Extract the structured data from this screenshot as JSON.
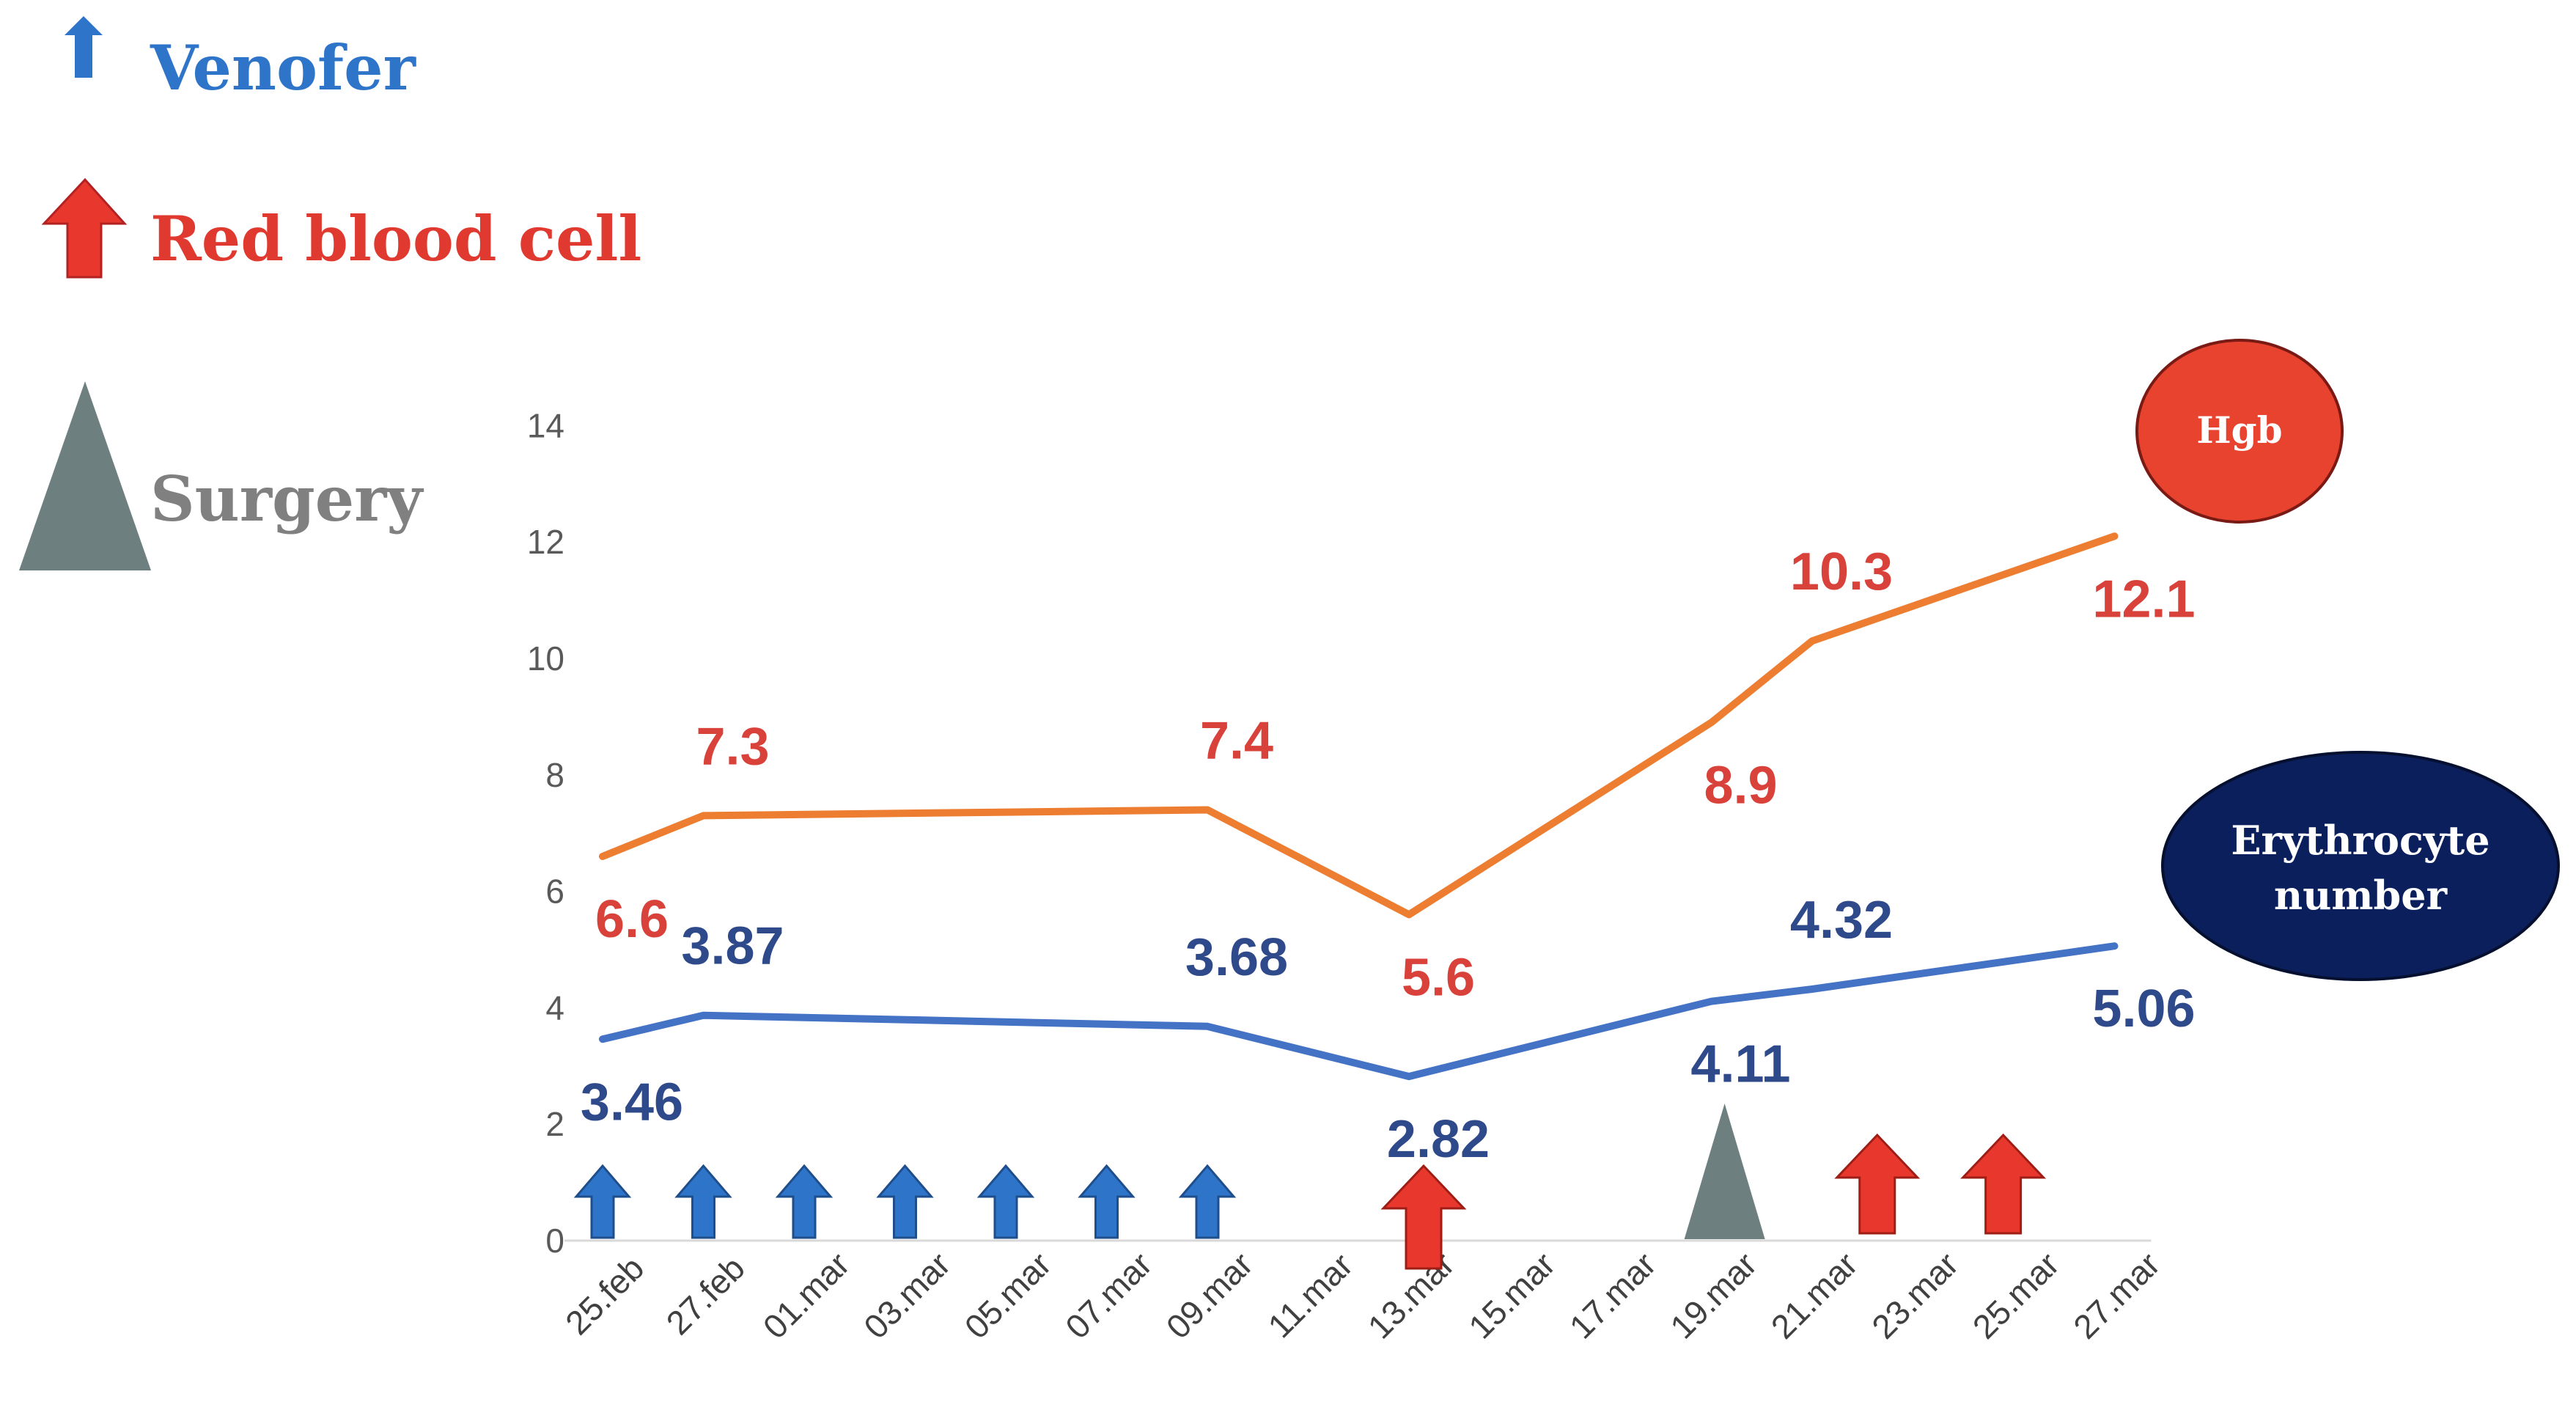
{
  "legend": {
    "venofer": "Venofer",
    "rbc": "Red blood cell",
    "surgery": "Surgery"
  },
  "badges": {
    "hgb": "Hgb",
    "erythrocyte_line1": "Erythrocyte",
    "erythrocyte_line2": "number"
  },
  "colors": {
    "hgb_line": "#ED7D31",
    "ery_line": "#4472C4",
    "hgb_label": "#D9423A",
    "ery_label": "#2F4A8A",
    "venofer": "#2E75C9",
    "rbc": "#E8382E",
    "surgery": "#6E7F80",
    "hgb_badge": "#E8432F",
    "ery_badge": "#0B1F5C"
  },
  "chart_data": {
    "type": "line",
    "categories": [
      "25.feb",
      "27.feb",
      "01.mar",
      "03.mar",
      "05.mar",
      "07.mar",
      "09.mar",
      "11.mar",
      "13.mar",
      "15.mar",
      "17.mar",
      "19.mar",
      "21.mar",
      "23.mar",
      "25.mar",
      "27.mar"
    ],
    "ylim": [
      0,
      14
    ],
    "yticks": [
      0,
      2,
      4,
      6,
      8,
      10,
      12,
      14
    ],
    "series": [
      {
        "name": "Hgb",
        "points": [
          {
            "x": 0,
            "y": 6.6,
            "label": "6.6",
            "label_pos": "below"
          },
          {
            "x": 1,
            "y": 7.3,
            "label": "7.3",
            "label_pos": "above"
          },
          {
            "x": 6,
            "y": 7.4,
            "label": "7.4",
            "label_pos": "above"
          },
          {
            "x": 8,
            "y": 5.6,
            "label": "5.6",
            "label_pos": "below"
          },
          {
            "x": 11,
            "y": 8.9,
            "label": "8.9",
            "label_pos": "below"
          },
          {
            "x": 12,
            "y": 10.3,
            "label": "10.3",
            "label_pos": "above"
          },
          {
            "x": 15,
            "y": 12.1,
            "label": "12.1",
            "label_pos": "below"
          }
        ]
      },
      {
        "name": "Erythrocyte number",
        "points": [
          {
            "x": 0,
            "y": 3.46,
            "label": "3.46",
            "label_pos": "below"
          },
          {
            "x": 1,
            "y": 3.87,
            "label": "3.87",
            "label_pos": "above"
          },
          {
            "x": 6,
            "y": 3.68,
            "label": "3.68",
            "label_pos": "above"
          },
          {
            "x": 8,
            "y": 2.82,
            "label": "2.82",
            "label_pos": "below"
          },
          {
            "x": 11,
            "y": 4.11,
            "label": "4.11",
            "label_pos": "below"
          },
          {
            "x": 12,
            "y": 4.32,
            "label": "4.32",
            "label_pos": "above"
          },
          {
            "x": 15,
            "y": 5.06,
            "label": "5.06",
            "label_pos": "below"
          }
        ]
      }
    ],
    "events": {
      "venofer": [
        0,
        1,
        2,
        3,
        4,
        5,
        6
      ],
      "rbc": [
        8,
        12.5,
        13.75
      ],
      "surgery": [
        11.35
      ]
    }
  }
}
